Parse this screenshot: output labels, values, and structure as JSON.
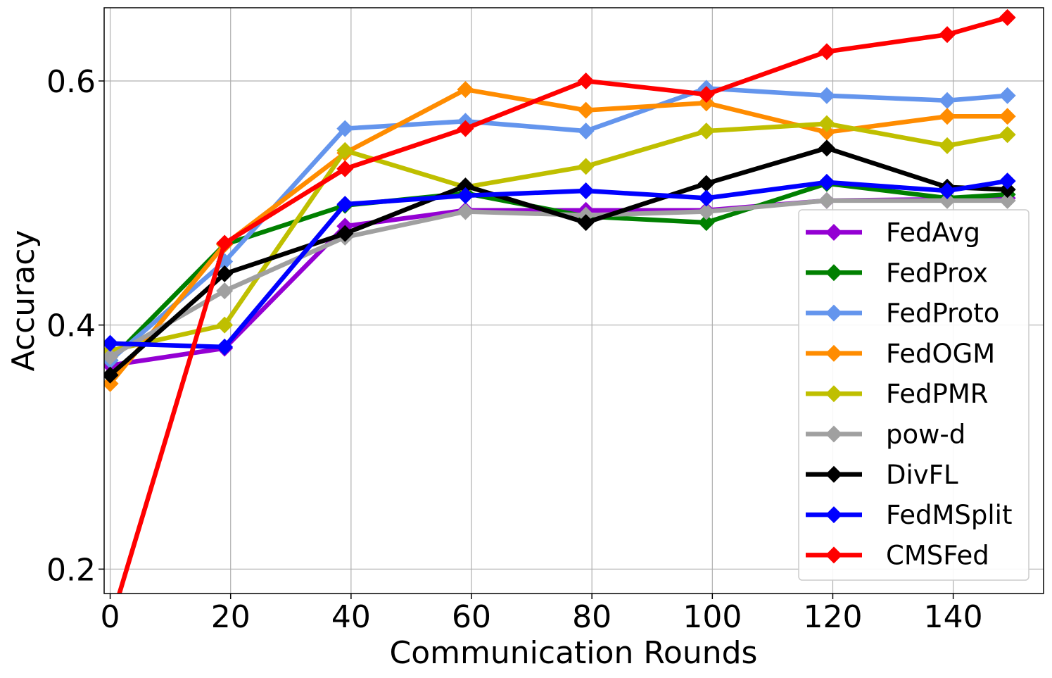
{
  "chart_data": {
    "type": "line",
    "title": "",
    "xlabel": "Communication Rounds",
    "ylabel": "Accuracy",
    "xlim": [
      -1,
      155
    ],
    "ylim": [
      0.18,
      0.66
    ],
    "xticks": [
      0,
      20,
      40,
      60,
      80,
      100,
      120,
      140
    ],
    "xtick_labels": [
      "0",
      "20",
      "40",
      "60",
      "80",
      "100",
      "120",
      "140"
    ],
    "yticks": [
      0.2,
      0.4,
      0.6
    ],
    "ytick_labels": [
      "0.2",
      "0.4",
      "0.6"
    ],
    "grid": true,
    "legend_position": "lower-right",
    "x": [
      0,
      19,
      39,
      59,
      79,
      99,
      119,
      139,
      149
    ],
    "series": [
      {
        "name": "FedAvg",
        "color": "#9400D3",
        "values": [
          0.367,
          0.381,
          0.481,
          0.494,
          0.494,
          0.494,
          0.502,
          0.503,
          0.504
        ]
      },
      {
        "name": "FedProx",
        "color": "#008000",
        "values": [
          0.371,
          0.466,
          0.498,
          0.508,
          0.489,
          0.484,
          0.516,
          0.504,
          0.507
        ]
      },
      {
        "name": "FedProto",
        "color": "#6495ED",
        "values": [
          0.371,
          0.452,
          0.561,
          0.567,
          0.559,
          0.594,
          0.588,
          0.584,
          0.588
        ]
      },
      {
        "name": "FedOGM",
        "color": "#FF8C00",
        "values": [
          0.352,
          0.466,
          0.541,
          0.593,
          0.576,
          0.582,
          0.558,
          0.571,
          0.571
        ]
      },
      {
        "name": "FedPMR",
        "color": "#BFBF00",
        "values": [
          0.379,
          0.4,
          0.543,
          0.513,
          0.53,
          0.559,
          0.565,
          0.547,
          0.556
        ]
      },
      {
        "name": "pow-d",
        "color": "#A0A0A0",
        "values": [
          0.374,
          0.428,
          0.472,
          0.493,
          0.49,
          0.493,
          0.502,
          0.502,
          0.502
        ]
      },
      {
        "name": "DivFL",
        "color": "#000000",
        "values": [
          0.359,
          0.442,
          0.475,
          0.514,
          0.484,
          0.516,
          0.545,
          0.513,
          0.511
        ]
      },
      {
        "name": "FedMSplit",
        "color": "#0000FF",
        "values": [
          0.385,
          0.382,
          0.499,
          0.506,
          0.51,
          0.504,
          0.517,
          0.51,
          0.518
        ]
      },
      {
        "name": "CMSFed",
        "color": "#FF0000",
        "values": [
          0.155,
          0.467,
          0.528,
          0.561,
          0.6,
          0.589,
          0.624,
          0.638,
          0.652
        ]
      }
    ]
  }
}
